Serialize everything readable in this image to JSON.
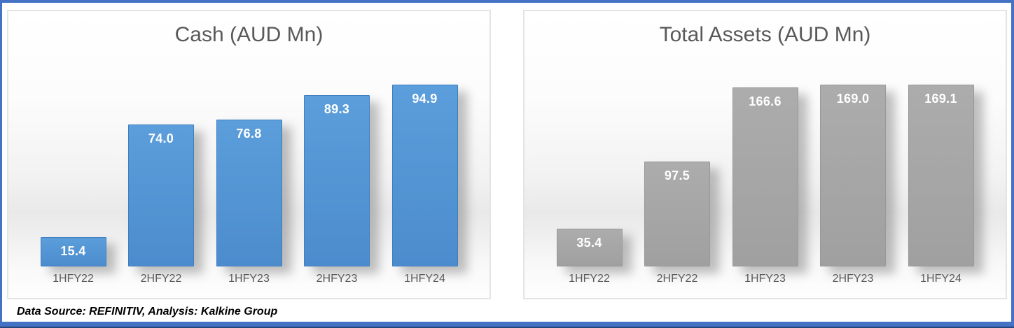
{
  "frame": {
    "border_color": "#4472c4",
    "bottom_band_color": "#4472c4",
    "bottom_edge_color": "#24457e",
    "panel_border_color": "#e4e4e4"
  },
  "caption": "Data Source: REFINITIV, Analysis: Kalkine Group",
  "chart_data": [
    {
      "type": "bar",
      "title": "Cash (AUD Mn)",
      "categories": [
        "1HFY22",
        "2HFY22",
        "1HFY23",
        "2HFY23",
        "1HFY24"
      ],
      "values": [
        15.4,
        74.0,
        76.8,
        89.3,
        94.9
      ],
      "value_labels": [
        "15.4",
        "74.0",
        "76.8",
        "89.3",
        "94.9"
      ],
      "bar_color_top": "#5b9edb",
      "bar_color_bottom": "#4c8ccd",
      "bar_border_color": "#3f7fc1",
      "value_label_color": "#ffffff",
      "category_label_color": "#595959",
      "title_color": "#595959",
      "xlabel": "",
      "ylabel": "",
      "grid": false,
      "legend": false,
      "value_labels_position": "inside-top"
    },
    {
      "type": "bar",
      "title": "Total Assets (AUD Mn)",
      "categories": [
        "1HFY22",
        "2HFY22",
        "1HFY23",
        "2HFY23",
        "1HFY24"
      ],
      "values": [
        35.4,
        97.5,
        166.6,
        169.0,
        169.1
      ],
      "value_labels": [
        "35.4",
        "97.5",
        "166.6",
        "169.0",
        "169.1"
      ],
      "bar_color_top": "#adacac",
      "bar_color_bottom": "#a0a0a0",
      "bar_border_color": "#989898",
      "value_label_color": "#ffffff",
      "category_label_color": "#595959",
      "title_color": "#595959",
      "xlabel": "",
      "ylabel": "",
      "grid": false,
      "legend": false,
      "value_labels_position": "inside-top"
    }
  ]
}
